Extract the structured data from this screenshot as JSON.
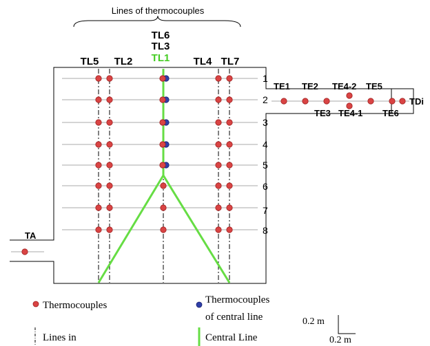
{
  "header": {
    "title": "Lines of thermocouples"
  },
  "line_labels": {
    "tl6": "TL6",
    "tl3": "TL3",
    "tl1": "TL1",
    "tl5": "TL5",
    "tl2": "TL2",
    "tl4": "TL4",
    "tl7": "TL7"
  },
  "level_labels": [
    "1",
    "2",
    "3",
    "4",
    "5",
    "6",
    "7",
    "8"
  ],
  "exit_labels": {
    "te1": "TE1",
    "te2": "TE2",
    "te4_2": "TE4-2",
    "te5": "TE5",
    "tdi": "TDi",
    "te3": "TE3",
    "te4_1": "TE4-1",
    "te6": "TE6"
  },
  "inlet_label": "TA",
  "legend": {
    "thermocouples": "Thermocouples",
    "central_1": "Thermocouples",
    "central_2": "of central line",
    "lines_in": "Lines in",
    "central_line": "Central Line",
    "scale_v": "0.2 m",
    "scale_h": "0.2 m"
  },
  "colors": {
    "thermocouple": "#d94444",
    "central_thermocouple": "#2f3fa8",
    "central_line": "#66dd44",
    "outline": "#000000",
    "level_line": "#aaaaaa"
  }
}
